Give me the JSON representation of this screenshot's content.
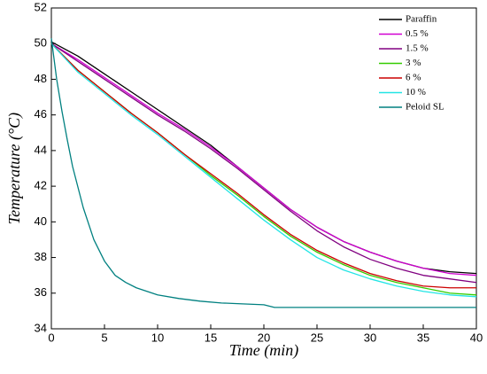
{
  "chart_data": {
    "type": "line",
    "title": "",
    "xlabel": "Time (min)",
    "ylabel": "Temperature (°C)",
    "xlim": [
      0,
      40
    ],
    "ylim": [
      34,
      52
    ],
    "xticks": [
      0,
      5,
      10,
      15,
      20,
      25,
      30,
      35,
      40
    ],
    "yticks": [
      34,
      36,
      38,
      40,
      42,
      44,
      46,
      48,
      50,
      52
    ],
    "grid": false,
    "legend_position": "top-right",
    "series": [
      {
        "name": "Paraffin",
        "color": "#000000",
        "x": [
          0,
          2.5,
          5,
          7.5,
          10,
          12.5,
          15,
          17.5,
          20,
          22.5,
          25,
          27.5,
          30,
          32.5,
          35,
          37.5,
          40
        ],
        "y": [
          50.1,
          49.3,
          48.3,
          47.3,
          46.3,
          45.3,
          44.3,
          43.1,
          41.9,
          40.7,
          39.7,
          38.9,
          38.3,
          37.8,
          37.4,
          37.2,
          37.1
        ]
      },
      {
        "name": "0.5 %",
        "color": "#d100d1",
        "x": [
          0,
          2.5,
          5,
          7.5,
          10,
          12.5,
          15,
          17.5,
          20,
          22.5,
          25,
          27.5,
          30,
          32.5,
          35,
          37.5,
          40
        ],
        "y": [
          50.0,
          49.1,
          48.1,
          47.1,
          46.1,
          45.2,
          44.2,
          43.1,
          41.9,
          40.7,
          39.7,
          38.9,
          38.3,
          37.8,
          37.4,
          37.1,
          37.0
        ]
      },
      {
        "name": "1.5 %",
        "color": "#800080",
        "x": [
          0,
          2.5,
          5,
          7.5,
          10,
          12.5,
          15,
          17.5,
          20,
          22.5,
          25,
          27.5,
          30,
          32.5,
          35,
          37.5,
          40
        ],
        "y": [
          50.0,
          49.0,
          48.0,
          47.0,
          46.0,
          45.1,
          44.1,
          43.0,
          41.8,
          40.6,
          39.5,
          38.6,
          37.9,
          37.4,
          37.0,
          36.8,
          36.6
        ]
      },
      {
        "name": "3 %",
        "color": "#33cc00",
        "x": [
          0,
          2.5,
          5,
          7.5,
          10,
          12.5,
          15,
          17.5,
          20,
          22.5,
          25,
          27.5,
          30,
          32.5,
          35,
          37.5,
          40
        ],
        "y": [
          50.0,
          48.5,
          47.3,
          46.1,
          45.0,
          43.8,
          42.6,
          41.5,
          40.3,
          39.2,
          38.3,
          37.6,
          37.0,
          36.6,
          36.3,
          36.0,
          35.9
        ]
      },
      {
        "name": "6 %",
        "color": "#cc0000",
        "x": [
          0,
          2.5,
          5,
          7.5,
          10,
          12.5,
          15,
          17.5,
          20,
          22.5,
          25,
          27.5,
          30,
          32.5,
          35,
          37.5,
          40
        ],
        "y": [
          50.0,
          48.5,
          47.3,
          46.1,
          45.0,
          43.8,
          42.7,
          41.6,
          40.4,
          39.3,
          38.4,
          37.7,
          37.1,
          36.7,
          36.4,
          36.3,
          36.3
        ]
      },
      {
        "name": "10 %",
        "color": "#22e5e5",
        "x": [
          0,
          2.5,
          5,
          7.5,
          10,
          12.5,
          15,
          17.5,
          20,
          22.5,
          25,
          27.5,
          30,
          32.5,
          35,
          37.5,
          40
        ],
        "y": [
          50.0,
          48.4,
          47.2,
          46.0,
          44.9,
          43.7,
          42.5,
          41.3,
          40.1,
          39.0,
          38.0,
          37.3,
          36.8,
          36.4,
          36.1,
          35.9,
          35.8
        ]
      },
      {
        "name": "Peloid SL",
        "color": "#008080",
        "x": [
          0,
          0.5,
          1,
          1.5,
          2,
          3,
          4,
          5,
          6,
          7,
          8,
          10,
          12,
          14,
          16,
          18,
          20,
          21,
          22,
          25,
          30,
          35,
          40
        ],
        "y": [
          50.3,
          48.0,
          46.2,
          44.6,
          43.1,
          40.8,
          39.0,
          37.8,
          37.0,
          36.6,
          36.3,
          35.9,
          35.7,
          35.55,
          35.45,
          35.4,
          35.35,
          35.2,
          35.2,
          35.2,
          35.2,
          35.2,
          35.2
        ]
      }
    ]
  }
}
